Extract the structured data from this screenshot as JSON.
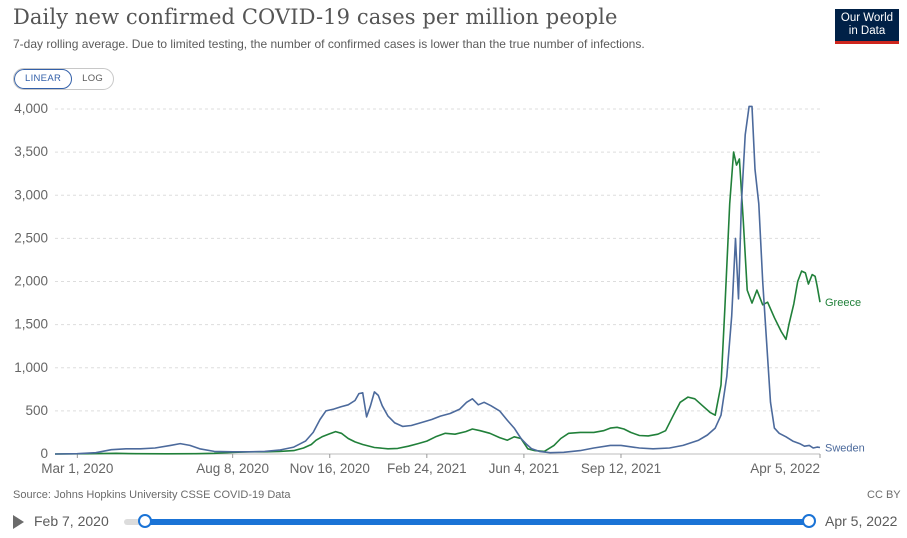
{
  "header": {
    "title": "Daily new confirmed COVID-19 cases per million people",
    "subtitle": "7-day rolling average. Due to limited testing, the number of confirmed cases is lower than the true number of infections.",
    "logo_line1": "Our World",
    "logo_line2": "in Data"
  },
  "controls": {
    "linear_label": "LINEAR",
    "log_label": "LOG",
    "active": "LINEAR"
  },
  "footer": {
    "source": "Source: Johns Hopkins University CSSE COVID-19 Data",
    "license": "CC BY"
  },
  "timeline": {
    "start": "Feb 7, 2020",
    "end": "Apr 5, 2022"
  },
  "colors": {
    "greece": "#21803a",
    "sweden": "#4c6a9c",
    "slider": "#1a73d6"
  },
  "chart_data": {
    "type": "line",
    "title": "Daily new confirmed COVID-19 cases per million people",
    "xlabel": "",
    "ylabel": "",
    "x_range": [
      "2020-02-07",
      "2022-04-05"
    ],
    "ylim": [
      0,
      4000
    ],
    "y_ticks": [
      {
        "value": 0,
        "label": "0"
      },
      {
        "value": 500,
        "label": "500"
      },
      {
        "value": 1000,
        "label": "1,000"
      },
      {
        "value": 1500,
        "label": "1,500"
      },
      {
        "value": 2000,
        "label": "2,000"
      },
      {
        "value": 2500,
        "label": "2,500"
      },
      {
        "value": 3000,
        "label": "3,000"
      },
      {
        "value": 3500,
        "label": "3,500"
      },
      {
        "value": 4000,
        "label": "4,000"
      }
    ],
    "x_ticks": [
      {
        "date": "2020-03-01",
        "label": "Mar 1, 2020"
      },
      {
        "date": "2020-08-08",
        "label": "Aug 8, 2020"
      },
      {
        "date": "2020-11-16",
        "label": "Nov 16, 2020"
      },
      {
        "date": "2021-02-24",
        "label": "Feb 24, 2021"
      },
      {
        "date": "2021-06-04",
        "label": "Jun 4, 2021"
      },
      {
        "date": "2021-09-12",
        "label": "Sep 12, 2021"
      },
      {
        "date": "2022-04-05",
        "label": "Apr 5, 2022"
      }
    ],
    "grid": true,
    "legend": "inline labels at line ends",
    "series": [
      {
        "name": "Greece",
        "color": "#21803a",
        "points": [
          [
            "2020-02-07",
            0
          ],
          [
            "2020-03-15",
            3
          ],
          [
            "2020-04-10",
            8
          ],
          [
            "2020-05-01",
            3
          ],
          [
            "2020-06-01",
            2
          ],
          [
            "2020-07-01",
            4
          ],
          [
            "2020-07-20",
            8
          ],
          [
            "2020-08-10",
            20
          ],
          [
            "2020-08-25",
            25
          ],
          [
            "2020-09-10",
            25
          ],
          [
            "2020-09-25",
            30
          ],
          [
            "2020-10-10",
            40
          ],
          [
            "2020-10-20",
            70
          ],
          [
            "2020-10-28",
            110
          ],
          [
            "2020-11-02",
            160
          ],
          [
            "2020-11-08",
            200
          ],
          [
            "2020-11-16",
            235
          ],
          [
            "2020-11-22",
            260
          ],
          [
            "2020-11-28",
            240
          ],
          [
            "2020-12-05",
            180
          ],
          [
            "2020-12-12",
            140
          ],
          [
            "2020-12-20",
            110
          ],
          [
            "2021-01-01",
            75
          ],
          [
            "2021-01-15",
            60
          ],
          [
            "2021-01-25",
            65
          ],
          [
            "2021-02-05",
            90
          ],
          [
            "2021-02-15",
            120
          ],
          [
            "2021-02-24",
            150
          ],
          [
            "2021-03-05",
            200
          ],
          [
            "2021-03-15",
            240
          ],
          [
            "2021-03-25",
            230
          ],
          [
            "2021-04-05",
            260
          ],
          [
            "2021-04-12",
            290
          ],
          [
            "2021-04-20",
            270
          ],
          [
            "2021-04-30",
            240
          ],
          [
            "2021-05-10",
            190
          ],
          [
            "2021-05-18",
            160
          ],
          [
            "2021-05-25",
            200
          ],
          [
            "2021-06-01",
            180
          ],
          [
            "2021-06-08",
            60
          ],
          [
            "2021-06-15",
            40
          ],
          [
            "2021-06-25",
            30
          ],
          [
            "2021-07-05",
            100
          ],
          [
            "2021-07-12",
            180
          ],
          [
            "2021-07-20",
            240
          ],
          [
            "2021-08-01",
            250
          ],
          [
            "2021-08-15",
            250
          ],
          [
            "2021-08-25",
            270
          ],
          [
            "2021-09-01",
            300
          ],
          [
            "2021-09-08",
            310
          ],
          [
            "2021-09-15",
            290
          ],
          [
            "2021-09-22",
            250
          ],
          [
            "2021-10-01",
            215
          ],
          [
            "2021-10-10",
            210
          ],
          [
            "2021-10-20",
            230
          ],
          [
            "2021-10-28",
            270
          ],
          [
            "2021-11-05",
            450
          ],
          [
            "2021-11-12",
            600
          ],
          [
            "2021-11-20",
            660
          ],
          [
            "2021-11-27",
            640
          ],
          [
            "2021-12-05",
            560
          ],
          [
            "2021-12-13",
            480
          ],
          [
            "2021-12-18",
            450
          ],
          [
            "2021-12-24",
            800
          ],
          [
            "2021-12-28",
            1700
          ],
          [
            "2022-01-02",
            2900
          ],
          [
            "2022-01-06",
            3500
          ],
          [
            "2022-01-09",
            3350
          ],
          [
            "2022-01-12",
            3420
          ],
          [
            "2022-01-16",
            2700
          ],
          [
            "2022-01-20",
            1900
          ],
          [
            "2022-01-25",
            1750
          ],
          [
            "2022-01-30",
            1900
          ],
          [
            "2022-02-05",
            1730
          ],
          [
            "2022-02-10",
            1760
          ],
          [
            "2022-02-17",
            1580
          ],
          [
            "2022-02-24",
            1420
          ],
          [
            "2022-03-01",
            1330
          ],
          [
            "2022-03-04",
            1500
          ],
          [
            "2022-03-09",
            1740
          ],
          [
            "2022-03-13",
            2000
          ],
          [
            "2022-03-17",
            2120
          ],
          [
            "2022-03-21",
            2100
          ],
          [
            "2022-03-24",
            1970
          ],
          [
            "2022-03-28",
            2080
          ],
          [
            "2022-03-31",
            2060
          ],
          [
            "2022-04-02",
            1950
          ],
          [
            "2022-04-05",
            1760
          ]
        ]
      },
      {
        "name": "Sweden",
        "color": "#4c6a9c",
        "points": [
          [
            "2020-02-07",
            0
          ],
          [
            "2020-03-01",
            3
          ],
          [
            "2020-03-20",
            15
          ],
          [
            "2020-04-05",
            50
          ],
          [
            "2020-04-20",
            60
          ],
          [
            "2020-05-05",
            60
          ],
          [
            "2020-05-20",
            70
          ],
          [
            "2020-06-05",
            100
          ],
          [
            "2020-06-15",
            120
          ],
          [
            "2020-06-25",
            100
          ],
          [
            "2020-07-05",
            60
          ],
          [
            "2020-07-20",
            30
          ],
          [
            "2020-08-08",
            25
          ],
          [
            "2020-08-25",
            25
          ],
          [
            "2020-09-10",
            30
          ],
          [
            "2020-09-25",
            45
          ],
          [
            "2020-10-10",
            80
          ],
          [
            "2020-10-22",
            150
          ],
          [
            "2020-10-30",
            250
          ],
          [
            "2020-11-06",
            400
          ],
          [
            "2020-11-12",
            500
          ],
          [
            "2020-11-20",
            520
          ],
          [
            "2020-11-28",
            550
          ],
          [
            "2020-12-05",
            570
          ],
          [
            "2020-12-12",
            620
          ],
          [
            "2020-12-16",
            700
          ],
          [
            "2020-12-20",
            710
          ],
          [
            "2020-12-24",
            430
          ],
          [
            "2020-12-28",
            560
          ],
          [
            "2021-01-01",
            720
          ],
          [
            "2021-01-05",
            680
          ],
          [
            "2021-01-09",
            560
          ],
          [
            "2021-01-15",
            440
          ],
          [
            "2021-01-22",
            360
          ],
          [
            "2021-01-30",
            320
          ],
          [
            "2021-02-08",
            330
          ],
          [
            "2021-02-20",
            370
          ],
          [
            "2021-03-01",
            400
          ],
          [
            "2021-03-10",
            440
          ],
          [
            "2021-03-20",
            470
          ],
          [
            "2021-03-30",
            520
          ],
          [
            "2021-04-06",
            600
          ],
          [
            "2021-04-12",
            640
          ],
          [
            "2021-04-18",
            570
          ],
          [
            "2021-04-24",
            600
          ],
          [
            "2021-05-01",
            560
          ],
          [
            "2021-05-10",
            500
          ],
          [
            "2021-05-18",
            390
          ],
          [
            "2021-05-25",
            300
          ],
          [
            "2021-06-01",
            180
          ],
          [
            "2021-06-07",
            110
          ],
          [
            "2021-06-12",
            60
          ],
          [
            "2021-06-20",
            30
          ],
          [
            "2021-07-01",
            15
          ],
          [
            "2021-07-15",
            20
          ],
          [
            "2021-08-01",
            40
          ],
          [
            "2021-08-15",
            70
          ],
          [
            "2021-09-01",
            100
          ],
          [
            "2021-09-12",
            100
          ],
          [
            "2021-10-01",
            70
          ],
          [
            "2021-10-15",
            60
          ],
          [
            "2021-11-01",
            70
          ],
          [
            "2021-11-15",
            100
          ],
          [
            "2021-12-01",
            160
          ],
          [
            "2021-12-10",
            220
          ],
          [
            "2021-12-18",
            300
          ],
          [
            "2021-12-24",
            450
          ],
          [
            "2021-12-30",
            900
          ],
          [
            "2022-01-04",
            1600
          ],
          [
            "2022-01-08",
            2500
          ],
          [
            "2022-01-11",
            1800
          ],
          [
            "2022-01-14",
            2900
          ],
          [
            "2022-01-18",
            3700
          ],
          [
            "2022-01-22",
            4030
          ],
          [
            "2022-01-25",
            4030
          ],
          [
            "2022-01-28",
            3300
          ],
          [
            "2022-02-01",
            2900
          ],
          [
            "2022-02-05",
            2000
          ],
          [
            "2022-02-09",
            1300
          ],
          [
            "2022-02-13",
            600
          ],
          [
            "2022-02-17",
            300
          ],
          [
            "2022-02-22",
            240
          ],
          [
            "2022-03-01",
            200
          ],
          [
            "2022-03-08",
            150
          ],
          [
            "2022-03-15",
            120
          ],
          [
            "2022-03-20",
            90
          ],
          [
            "2022-03-25",
            100
          ],
          [
            "2022-03-29",
            70
          ],
          [
            "2022-04-02",
            80
          ],
          [
            "2022-04-05",
            75
          ]
        ]
      }
    ]
  }
}
